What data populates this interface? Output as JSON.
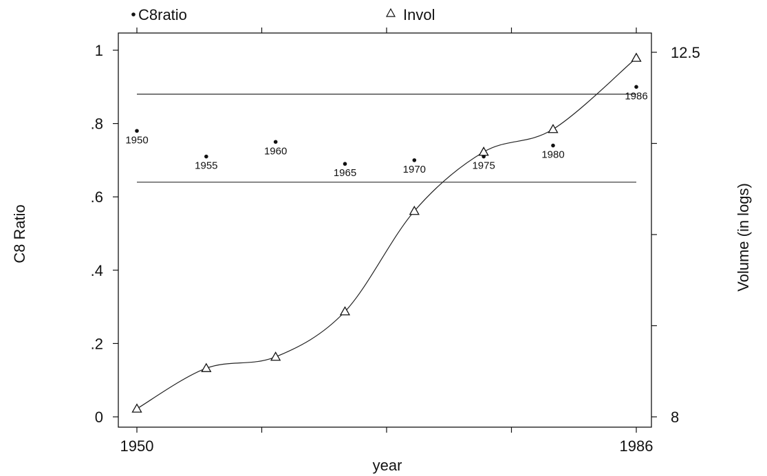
{
  "chart_data": {
    "type": "scatter",
    "legend": [
      {
        "symbol": "dot",
        "label": "C8ratio"
      },
      {
        "symbol": "triangle",
        "label": "Invol"
      }
    ],
    "legend_placement": "top",
    "xlabel": "year",
    "ylabel_left": "C8 Ratio",
    "ylabel_right": "Volume (in logs)",
    "xlim": [
      1950,
      1986
    ],
    "ylim_left": [
      0,
      1
    ],
    "ylim_right": [
      8,
      12.5
    ],
    "x_tick_labels": [
      "1950",
      "1986"
    ],
    "y_left_ticks": [
      {
        "value": 0,
        "label": "0"
      },
      {
        "value": 0.2,
        "label": ".2"
      },
      {
        "value": 0.4,
        "label": ".4"
      },
      {
        "value": 0.6,
        "label": ".6"
      },
      {
        "value": 0.8,
        "label": ".8"
      },
      {
        "value": 1,
        "label": "1"
      }
    ],
    "y_right_ticks": [
      {
        "value": 8,
        "label": "8"
      },
      {
        "value": 12.5,
        "label": "12.5"
      }
    ],
    "reference_lines_left": [
      0.88,
      0.64
    ],
    "series": [
      {
        "name": "C8ratio",
        "axis": "left",
        "marker": "dot",
        "points": [
          {
            "x": 1950,
            "y": 0.78,
            "label": "1950"
          },
          {
            "x": 1955,
            "y": 0.71,
            "label": "1955"
          },
          {
            "x": 1960,
            "y": 0.75,
            "label": "1960"
          },
          {
            "x": 1965,
            "y": 0.69,
            "label": "1965"
          },
          {
            "x": 1970,
            "y": 0.7,
            "label": "1970"
          },
          {
            "x": 1975,
            "y": 0.71,
            "label": "1975"
          },
          {
            "x": 1980,
            "y": 0.74,
            "label": "1980"
          },
          {
            "x": 1986,
            "y": 0.9,
            "label": "1986"
          }
        ]
      },
      {
        "name": "Invol",
        "axis": "right",
        "marker": "triangle",
        "smooth_line": true,
        "points": [
          {
            "x": 1950,
            "y": 8.1
          },
          {
            "x": 1955,
            "y": 8.6
          },
          {
            "x": 1960,
            "y": 8.74
          },
          {
            "x": 1965,
            "y": 9.3
          },
          {
            "x": 1970,
            "y": 10.54
          },
          {
            "x": 1975,
            "y": 11.27
          },
          {
            "x": 1980,
            "y": 11.55
          },
          {
            "x": 1986,
            "y": 12.43
          }
        ]
      }
    ]
  }
}
